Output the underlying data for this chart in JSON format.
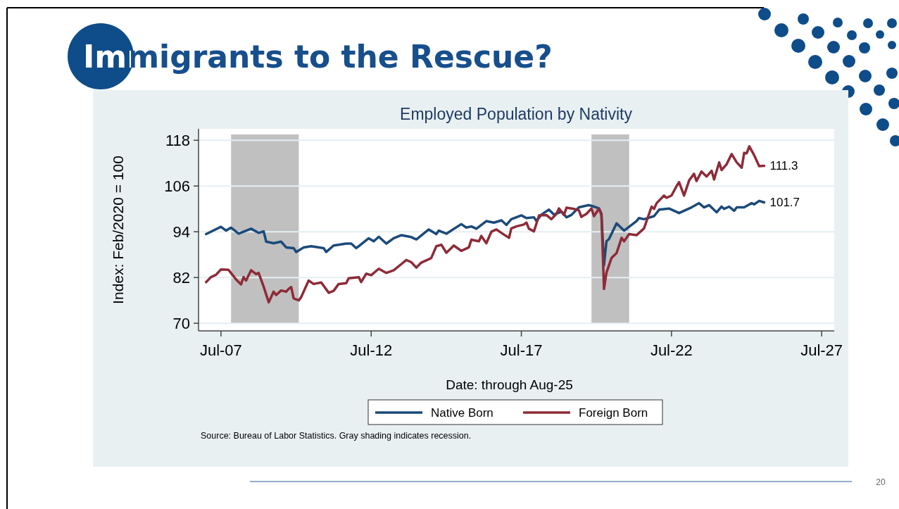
{
  "chart_data": {
    "type": "line",
    "title": "Immigrants to the Rescue?",
    "subtitle": "Employed Population by Nativity",
    "xlabel": "Date: through Aug-25",
    "ylabel": "Index: Feb/2020 = 100",
    "xlim": [
      "2006-10",
      "2027-12"
    ],
    "xticks": [
      {
        "value": "2007-07",
        "label": "Jul-07"
      },
      {
        "value": "2012-07",
        "label": "Jul-12"
      },
      {
        "value": "2017-07",
        "label": "Jul-17"
      },
      {
        "value": "2022-07",
        "label": "Jul-22"
      },
      {
        "value": "2027-07",
        "label": "Jul-27"
      }
    ],
    "ylim": [
      68,
      121
    ],
    "yticks": [
      70,
      82,
      94,
      106,
      118
    ],
    "grid": "y",
    "legend": "bottom",
    "bands": [
      {
        "axis": "x",
        "from": "2007-11",
        "to": "2010-02",
        "color": "#c0c0c0"
      },
      {
        "axis": "x",
        "from": "2019-11",
        "to": "2021-02",
        "color": "#c0c0c0"
      }
    ],
    "series": [
      {
        "name": "Native Born",
        "color": "#1b4a7a",
        "x": [
          "2007-01",
          "2007-07",
          "2007-09",
          "2007-11",
          "2008-02",
          "2008-07",
          "2008-10",
          "2008-12",
          "2009-01",
          "2009-04",
          "2009-07",
          "2009-09",
          "2009-12",
          "2010-01",
          "2010-04",
          "2010-07",
          "2010-12",
          "2011-01",
          "2011-04",
          "2011-09",
          "2011-11",
          "2012-01",
          "2012-06",
          "2012-08",
          "2012-10",
          "2013-01",
          "2013-04",
          "2013-07",
          "2013-11",
          "2014-01",
          "2014-06",
          "2014-09",
          "2014-10",
          "2015-01",
          "2015-07",
          "2015-09",
          "2015-11",
          "2016-01",
          "2016-05",
          "2016-08",
          "2016-11",
          "2017-01",
          "2017-03",
          "2017-07",
          "2017-09",
          "2017-12",
          "2018-01",
          "2018-03",
          "2018-06",
          "2018-08",
          "2018-11",
          "2019-01",
          "2019-03",
          "2019-06",
          "2019-10",
          "2019-12",
          "2020-02",
          "2020-03",
          "2020-04",
          "2020-05",
          "2020-06",
          "2020-09",
          "2020-12",
          "2021-05",
          "2021-06",
          "2021-08",
          "2021-12",
          "2022-02",
          "2022-06",
          "2022-10",
          "2023-03",
          "2023-06",
          "2023-08",
          "2023-10",
          "2024-01",
          "2024-03",
          "2024-04",
          "2024-06",
          "2024-08",
          "2024-09",
          "2024-12",
          "2025-03",
          "2025-04",
          "2025-06",
          "2025-08"
        ],
        "values": [
          93.4,
          95.3,
          94.3,
          95.1,
          93.5,
          94.8,
          93.7,
          94.1,
          91.4,
          91.0,
          91.4,
          89.9,
          89.7,
          88.7,
          89.9,
          90.2,
          89.7,
          88.7,
          90.4,
          90.9,
          90.9,
          89.7,
          92.3,
          91.5,
          92.7,
          90.9,
          92.3,
          93.1,
          92.6,
          92.0,
          94.6,
          93.4,
          94.3,
          93.5,
          96.0,
          95.1,
          95.4,
          94.8,
          96.8,
          96.4,
          97.0,
          95.8,
          97.3,
          98.3,
          97.6,
          97.8,
          96.8,
          98.5,
          99.8,
          98.5,
          99.3,
          97.8,
          98.4,
          100.4,
          101.0,
          100.6,
          100.1,
          98.7,
          85.2,
          91.5,
          92.1,
          96.2,
          94.3,
          96.8,
          97.6,
          97.3,
          98.1,
          99.8,
          100.1,
          98.9,
          100.4,
          101.5,
          100.4,
          101.0,
          99.1,
          100.6,
          100.0,
          100.6,
          99.5,
          100.4,
          100.4,
          101.5,
          101.2,
          102.1,
          101.7
        ]
      },
      {
        "name": "Foreign Born",
        "color": "#8e2b38",
        "x": [
          "2007-01",
          "2007-03",
          "2007-05",
          "2007-07",
          "2007-10",
          "2008-01",
          "2008-03",
          "2008-04",
          "2008-05",
          "2008-07",
          "2008-09",
          "2008-10",
          "2008-12",
          "2009-02",
          "2009-04",
          "2009-05",
          "2009-07",
          "2009-09",
          "2009-10",
          "2009-11",
          "2009-12",
          "2010-02",
          "2010-03",
          "2010-06",
          "2010-08",
          "2010-11",
          "2011-02",
          "2011-04",
          "2011-06",
          "2011-09",
          "2011-10",
          "2012-02",
          "2012-03",
          "2012-05",
          "2012-07",
          "2012-10",
          "2013-01",
          "2013-04",
          "2013-07",
          "2013-09",
          "2013-11",
          "2014-01",
          "2014-03",
          "2014-07",
          "2014-09",
          "2014-11",
          "2015-01",
          "2015-03",
          "2015-04",
          "2015-07",
          "2015-10",
          "2015-11",
          "2016-02",
          "2016-03",
          "2016-05",
          "2016-07",
          "2016-09",
          "2016-11",
          "2017-02",
          "2017-03",
          "2017-05",
          "2017-08",
          "2017-09",
          "2017-10",
          "2017-12",
          "2018-02",
          "2018-05",
          "2018-07",
          "2018-09",
          "2018-10",
          "2018-12",
          "2019-01",
          "2019-04",
          "2019-06",
          "2019-07",
          "2019-09",
          "2019-11",
          "2019-12",
          "2020-02",
          "2020-03",
          "2020-04",
          "2020-05",
          "2020-07",
          "2020-09",
          "2020-11",
          "2020-12",
          "2021-02",
          "2021-05",
          "2021-08",
          "2021-11",
          "2021-12",
          "2022-01",
          "2022-04",
          "2022-05",
          "2022-07",
          "2022-09",
          "2022-10",
          "2022-12",
          "2023-02",
          "2023-04",
          "2023-05",
          "2023-07",
          "2023-09",
          "2023-11",
          "2023-12",
          "2024-02",
          "2024-03",
          "2024-05",
          "2024-07",
          "2024-09",
          "2024-11",
          "2024-12",
          "2025-01",
          "2025-02",
          "2025-04",
          "2025-06",
          "2025-08"
        ],
        "values": [
          80.8,
          82.1,
          82.7,
          84.1,
          84.0,
          81.5,
          80.2,
          82.1,
          81.2,
          83.9,
          82.9,
          83.2,
          79.6,
          75.5,
          78.3,
          77.4,
          78.6,
          78.3,
          79.0,
          79.5,
          76.5,
          76.0,
          76.8,
          81.2,
          80.3,
          80.7,
          78.0,
          78.5,
          80.3,
          80.5,
          81.8,
          82.1,
          80.8,
          83.0,
          82.6,
          84.3,
          83.2,
          83.9,
          85.5,
          86.6,
          86.0,
          84.6,
          85.9,
          87.1,
          90.2,
          90.6,
          88.5,
          89.7,
          90.4,
          89.0,
          89.9,
          91.9,
          91.5,
          92.9,
          91.0,
          94.0,
          94.6,
          93.7,
          92.4,
          94.9,
          95.4,
          95.9,
          96.4,
          94.8,
          94.1,
          98.3,
          98.4,
          97.3,
          98.7,
          100.1,
          98.4,
          100.3,
          100.0,
          99.6,
          97.9,
          98.7,
          100.1,
          98.1,
          100.1,
          98.4,
          79.0,
          83.3,
          87.1,
          88.4,
          92.4,
          91.5,
          93.4,
          93.1,
          94.9,
          100.6,
          100.0,
          101.5,
          103.5,
          102.9,
          103.5,
          106.0,
          107.0,
          103.5,
          107.5,
          109.2,
          107.3,
          109.8,
          108.5,
          110.0,
          107.7,
          112.2,
          110.2,
          111.7,
          114.4,
          112.2,
          110.8,
          114.7,
          114.6,
          116.4,
          114.1,
          111.2,
          111.3
        ]
      }
    ],
    "annotations": [
      {
        "text": "111.3",
        "x": "2025-08",
        "y": 111.3
      },
      {
        "text": "101.7",
        "x": "2025-08",
        "y": 101.7
      },
      "Source: Bureau of Labor Statistics. Gray shading indicates recession.",
      "20"
    ]
  }
}
